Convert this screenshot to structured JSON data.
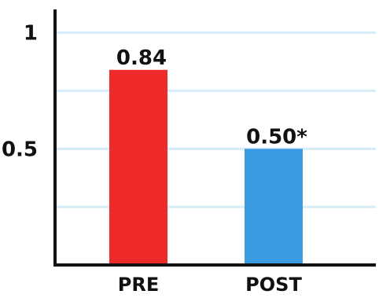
{
  "chart_data": {
    "type": "bar",
    "categories": [
      "PRE",
      "POST"
    ],
    "values": [
      0.84,
      0.5
    ],
    "value_labels": [
      "0.84",
      "0.50*"
    ],
    "title": "",
    "xlabel": "",
    "ylabel": "",
    "ylim": [
      0,
      1.1
    ],
    "yticks": [
      0.5,
      1
    ],
    "ytick_labels": [
      "0.5",
      "1"
    ],
    "gridlines": [
      0.25,
      0.5,
      0.75,
      1.0
    ],
    "grid": true,
    "legend": "none",
    "colors": [
      "#ee2a2a",
      "#3a9be0"
    ],
    "grid_color": "#d6ecf8",
    "axis_color": "#111111"
  }
}
